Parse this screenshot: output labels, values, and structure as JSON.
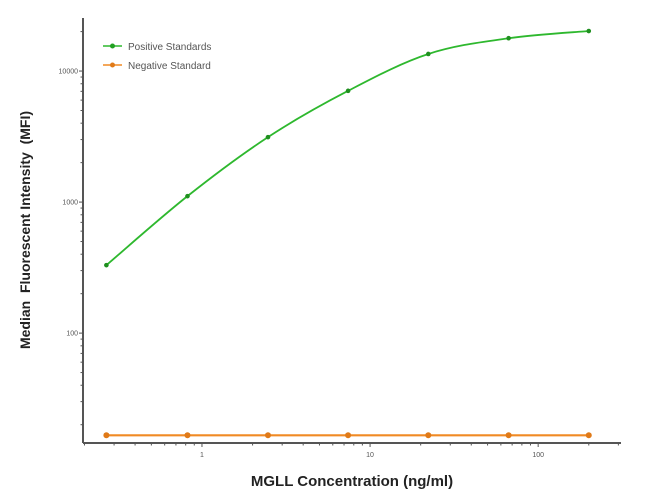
{
  "chart_data": {
    "type": "line",
    "title": "",
    "xlabel": "MGLL Concentration (ng/ml)",
    "ylabel": "Median  Fluorescent Intensity  (MFI)",
    "xscale": "log",
    "yscale": "log",
    "xlim": [
      0.196,
      311
    ],
    "ylim": [
      14.5,
      25400
    ],
    "x_ticks": [
      1,
      10,
      100
    ],
    "x_tick_labels": [
      "1",
      "10",
      "100"
    ],
    "y_ticks": [
      100,
      1000,
      10000
    ],
    "y_tick_labels": [
      "100",
      "1000",
      "10000"
    ],
    "grid": false,
    "legend_position": "top-left",
    "x": [
      0.27,
      0.82,
      2.47,
      7.4,
      22.2,
      66.7,
      200
    ],
    "series": [
      {
        "name": "Positive Standards",
        "color": "#2eb82e",
        "values": [
          330,
          1110,
          3130,
          7060,
          13500,
          17800,
          20200
        ]
      },
      {
        "name": "Negative Standard",
        "color": "#f08a24",
        "values": [
          16.6,
          16.6,
          16.6,
          16.6,
          16.6,
          16.6,
          16.6
        ]
      }
    ]
  }
}
